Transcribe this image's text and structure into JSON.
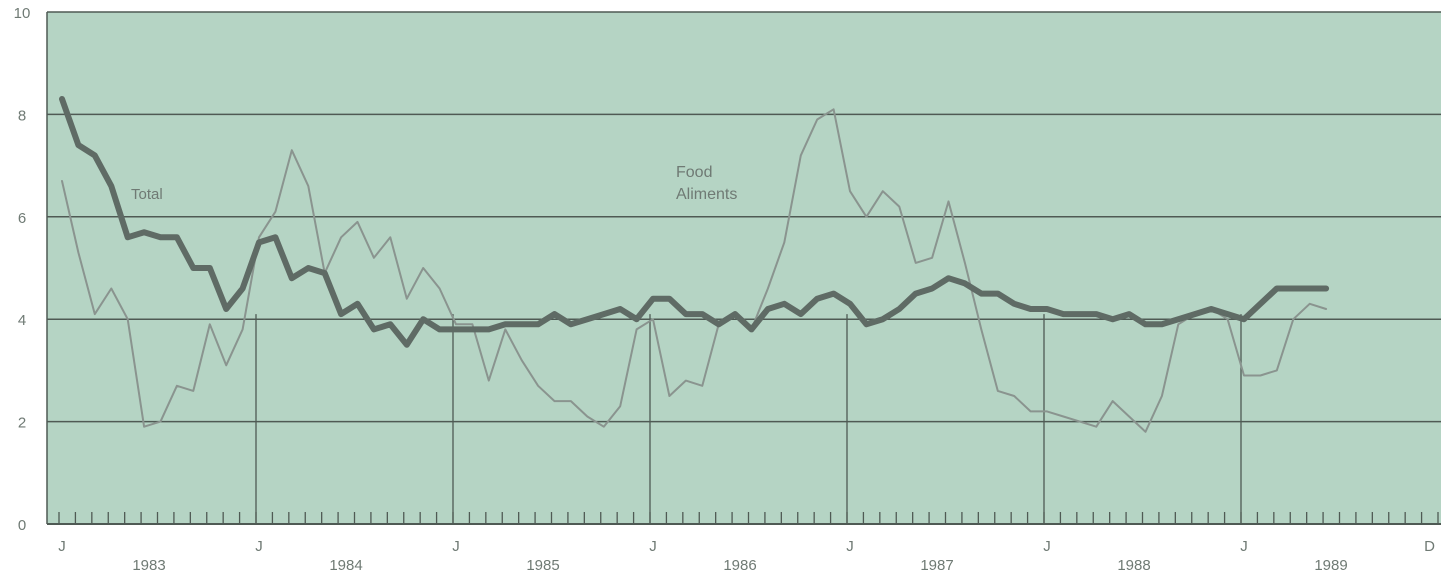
{
  "chart_data": {
    "type": "line",
    "title": "",
    "xlabel": "",
    "ylabel": "",
    "ylim": [
      0,
      10
    ],
    "y_ticks": [
      "0",
      "2",
      "4",
      "6",
      "8",
      "10"
    ],
    "x_month_labels": [
      "J",
      "J",
      "J",
      "J",
      "J",
      "J",
      "J",
      "D"
    ],
    "x_year_labels": [
      "1983",
      "1984",
      "1985",
      "1986",
      "1987",
      "1988",
      "1989"
    ],
    "x_start": "1983-01",
    "grid": true,
    "annotations": {
      "total": "Total",
      "food_line1": "Food",
      "food_line2": "Aliments"
    },
    "colors": {
      "background": "#b5d4c4",
      "total_line": "#5f6b65",
      "food_line": "#8a948f",
      "grid": "#4f5a54",
      "text": "#6f7a74"
    },
    "series": [
      {
        "name": "Total",
        "style": "thick",
        "values": [
          8.3,
          7.4,
          7.2,
          6.6,
          5.6,
          5.7,
          5.6,
          5.6,
          5.0,
          5.0,
          4.2,
          4.6,
          5.5,
          5.6,
          4.8,
          5.0,
          4.9,
          4.1,
          4.3,
          3.8,
          3.9,
          3.5,
          4.0,
          3.8,
          3.8,
          3.8,
          3.8,
          3.9,
          3.9,
          3.9,
          4.1,
          3.9,
          4.0,
          4.1,
          4.2,
          4.0,
          4.4,
          4.4,
          4.1,
          4.1,
          3.9,
          4.1,
          3.8,
          4.2,
          4.3,
          4.1,
          4.4,
          4.5,
          4.3,
          3.9,
          4.0,
          4.2,
          4.5,
          4.6,
          4.8,
          4.7,
          4.5,
          4.5,
          4.3,
          4.2,
          4.2,
          4.1,
          4.1,
          4.1,
          4.0,
          4.1,
          3.9,
          3.9,
          4.0,
          4.1,
          4.2,
          4.1,
          4.0,
          4.3,
          4.6,
          4.6,
          4.6,
          4.6
        ]
      },
      {
        "name": "Food Aliments",
        "style": "thin",
        "values": [
          6.7,
          5.3,
          4.1,
          4.6,
          4.0,
          1.9,
          2.0,
          2.7,
          2.6,
          3.9,
          3.1,
          3.8,
          5.6,
          6.1,
          7.3,
          6.6,
          4.9,
          5.6,
          5.9,
          5.2,
          5.6,
          4.4,
          5.0,
          4.6,
          3.9,
          3.9,
          2.8,
          3.8,
          3.2,
          2.7,
          2.4,
          2.4,
          2.1,
          1.9,
          2.3,
          3.8,
          4.0,
          2.5,
          2.8,
          2.7,
          3.9,
          4.1,
          3.8,
          4.6,
          5.5,
          7.2,
          7.9,
          8.1,
          6.5,
          6.0,
          6.5,
          6.2,
          5.1,
          5.2,
          6.3,
          5.1,
          3.8,
          2.6,
          2.5,
          2.2,
          2.2,
          2.1,
          2.0,
          1.9,
          2.4,
          2.1,
          1.8,
          2.5,
          3.9,
          4.1,
          4.2,
          4.0,
          2.9,
          2.9,
          3.0,
          4.0,
          4.3,
          4.2
        ]
      }
    ]
  }
}
